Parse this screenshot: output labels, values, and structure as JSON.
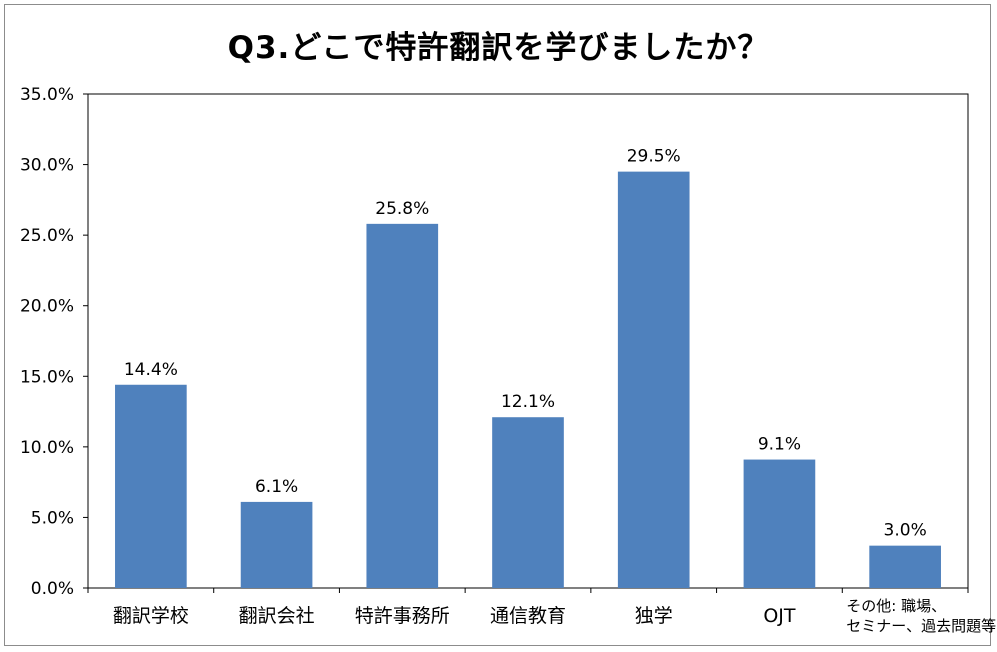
{
  "chart_data": {
    "type": "bar",
    "title": "Q3.どこで特許翻訳を学びましたか？",
    "xlabel": "",
    "ylabel": "",
    "ylim": [
      0,
      35
    ],
    "y_tick_values": [
      0,
      5,
      10,
      15,
      20,
      25,
      30,
      35
    ],
    "y_tick_labels": [
      "0.0%",
      "5.0%",
      "10.0%",
      "15.0%",
      "20.0%",
      "25.0%",
      "30.0%",
      "35.0%"
    ],
    "categories": [
      [
        "翻訳学校"
      ],
      [
        "翻訳会社"
      ],
      [
        "特許事務所"
      ],
      [
        "通信教育"
      ],
      [
        "独学"
      ],
      [
        "OJT"
      ],
      [
        "その他: 職場、",
        "セミナー、過去問題等"
      ]
    ],
    "values": [
      14.4,
      6.1,
      25.8,
      12.1,
      29.5,
      9.1,
      3.0
    ],
    "data_labels": [
      "14.4%",
      "6.1%",
      "25.8%",
      "12.1%",
      "29.5%",
      "9.1%",
      "3.0%"
    ],
    "bar_color": "#4f81bd",
    "grid": false,
    "legend": "none"
  }
}
